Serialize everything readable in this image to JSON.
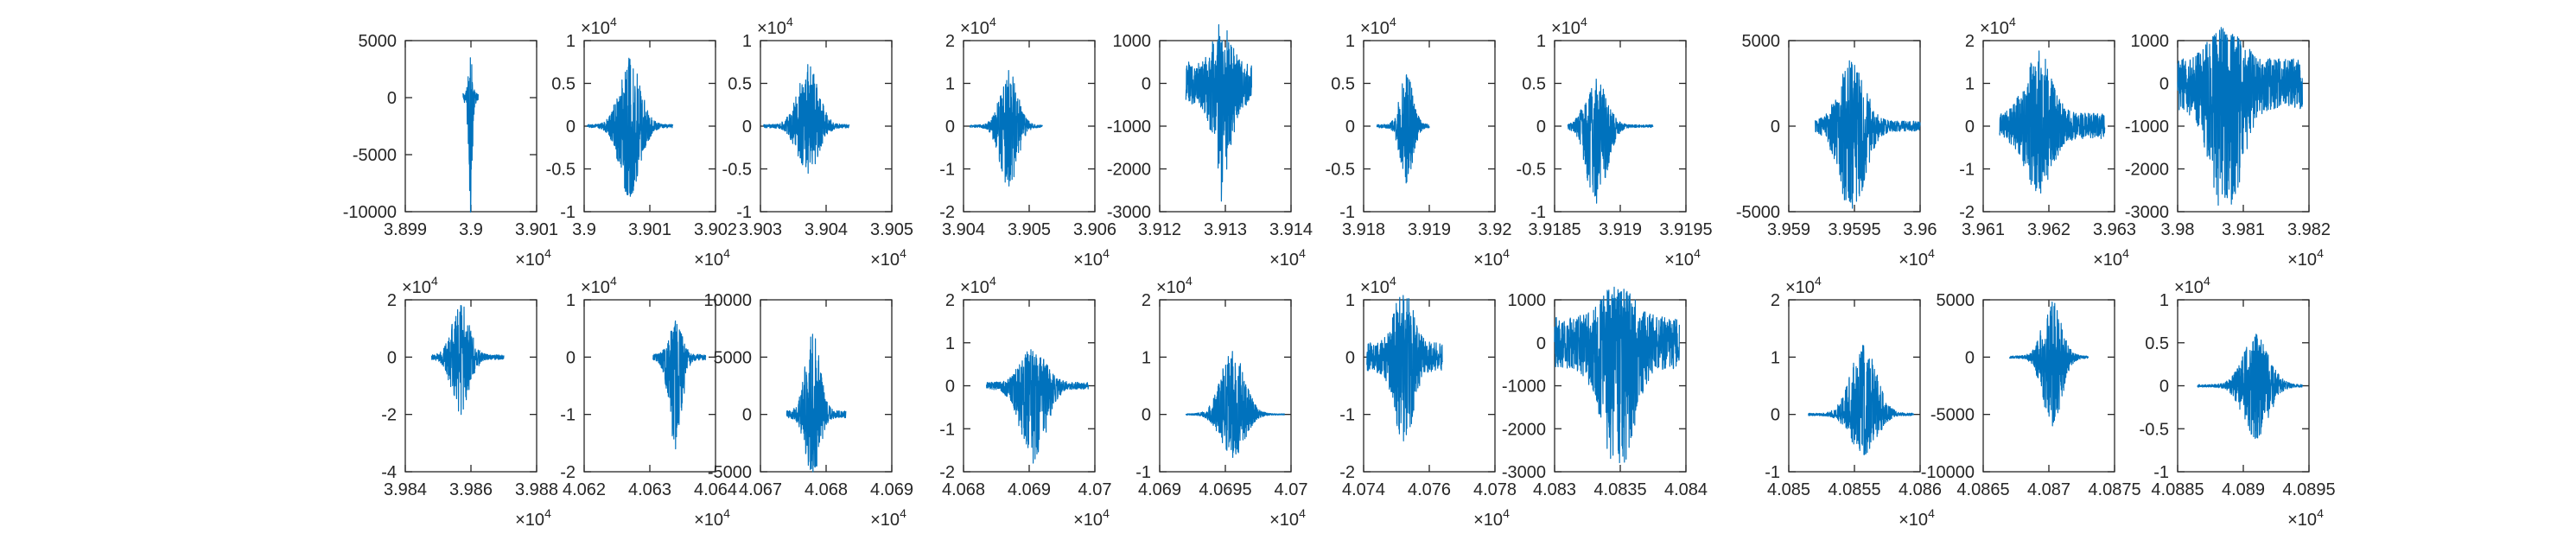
{
  "chart_data": [
    {
      "type": "line",
      "panel": "r1c1",
      "xlim": [
        38990,
        39010
      ],
      "ylim": [
        -10000,
        5000
      ],
      "x_tick_labels": [
        "3.899",
        "3.9",
        "3.901"
      ],
      "x_tick_values": [
        38990,
        39000,
        39010
      ],
      "x_multiplier": "×10^4",
      "y_tick_labels": [
        "5000",
        "0",
        "-5000",
        "-10000"
      ],
      "y_tick_values": [
        5000,
        0,
        -5000,
        -10000
      ],
      "y_multiplier": "",
      "series": [
        {
          "x_start": 38998.8,
          "x_end": 39001.1,
          "y_peak_pos": 3500,
          "y_peak_neg": -10000,
          "y_base": 400
        }
      ]
    },
    {
      "type": "line",
      "panel": "r1c2",
      "xlim": [
        39000,
        39020
      ],
      "ylim": [
        -10000,
        10000
      ],
      "x_tick_labels": [
        "3.9",
        "3.901",
        "3.902"
      ],
      "x_tick_values": [
        39000,
        39010,
        39020
      ],
      "x_multiplier": "×10^4",
      "y_tick_labels": [
        "1",
        "0.5",
        "0",
        "-0.5",
        "-1"
      ],
      "y_tick_values": [
        10000,
        5000,
        0,
        -5000,
        -10000
      ],
      "y_multiplier": "×10^4",
      "series": [
        {
          "x_start": 39000.5,
          "x_end": 39013.5,
          "y_peak_pos": 7800,
          "y_peak_neg": -8200,
          "y_base": 200
        }
      ]
    },
    {
      "type": "line",
      "panel": "r1c3",
      "xlim": [
        39030,
        39050
      ],
      "ylim": [
        -10000,
        10000
      ],
      "x_tick_labels": [
        "3.903",
        "3.904",
        "3.905"
      ],
      "x_tick_values": [
        39030,
        39040,
        39050
      ],
      "x_multiplier": "×10^4",
      "y_tick_labels": [
        "1",
        "0.5",
        "0",
        "-0.5",
        "-1"
      ],
      "y_tick_values": [
        10000,
        5000,
        0,
        -5000,
        -10000
      ],
      "y_multiplier": "×10^4",
      "series": [
        {
          "x_start": 39030.5,
          "x_end": 39043.5,
          "y_peak_pos": 7200,
          "y_peak_neg": -5500,
          "y_base": 200
        }
      ]
    },
    {
      "type": "line",
      "panel": "r1c4",
      "xlim": [
        39040,
        39060
      ],
      "ylim": [
        -20000,
        20000
      ],
      "x_tick_labels": [
        "3.904",
        "3.905",
        "3.906"
      ],
      "x_tick_values": [
        39040,
        39050,
        39060
      ],
      "x_multiplier": "×10^4",
      "y_tick_labels": [
        "2",
        "1",
        "0",
        "-1",
        "-2"
      ],
      "y_tick_values": [
        20000,
        10000,
        0,
        -10000,
        -20000
      ],
      "y_multiplier": "×10^4",
      "series": [
        {
          "x_start": 39041.0,
          "x_end": 39052.0,
          "y_peak_pos": 13000,
          "y_peak_neg": -14000,
          "y_base": 300
        }
      ]
    },
    {
      "type": "line",
      "panel": "r1c5",
      "xlim": [
        39120,
        39140
      ],
      "ylim": [
        -3000,
        1000
      ],
      "x_tick_labels": [
        "3.912",
        "3.913",
        "3.914"
      ],
      "x_tick_values": [
        39120,
        39130,
        39140
      ],
      "x_multiplier": "×10^4",
      "y_tick_labels": [
        "1000",
        "0",
        "-1000",
        "-2000",
        "-3000"
      ],
      "y_tick_values": [
        1000,
        0,
        -1000,
        -2000,
        -3000
      ],
      "y_multiplier": "",
      "series": [
        {
          "x_start": 39124.0,
          "x_end": 39134.0,
          "y_peak_pos": 1000,
          "y_peak_neg": -2300,
          "y_base": 500
        }
      ]
    },
    {
      "type": "line",
      "panel": "r1c6",
      "xlim": [
        39180,
        39200
      ],
      "ylim": [
        -10000,
        10000
      ],
      "x_tick_labels": [
        "3.918",
        "3.919",
        "3.92"
      ],
      "x_tick_values": [
        39180,
        39190,
        39200
      ],
      "x_multiplier": "×10^4",
      "y_tick_labels": [
        "1",
        "0.5",
        "0",
        "-0.5",
        "-1"
      ],
      "y_tick_values": [
        10000,
        5000,
        0,
        -5000,
        -10000
      ],
      "y_multiplier": "×10^4",
      "series": [
        {
          "x_start": 39182.0,
          "x_end": 39190.0,
          "y_peak_pos": 6000,
          "y_peak_neg": -6500,
          "y_base": 200
        }
      ]
    },
    {
      "type": "line",
      "panel": "r1c7",
      "xlim": [
        39185,
        39195
      ],
      "ylim": [
        -10000,
        10000
      ],
      "x_tick_labels": [
        "3.9185",
        "3.919",
        "3.9195"
      ],
      "x_tick_values": [
        39185,
        39190,
        39195
      ],
      "x_multiplier": "×10^4",
      "y_tick_labels": [
        "1",
        "0.5",
        "0",
        "-0.5",
        "-1"
      ],
      "y_tick_values": [
        10000,
        5000,
        0,
        -5000,
        -10000
      ],
      "y_multiplier": "×10^4",
      "series": [
        {
          "x_start": 39186.0,
          "x_end": 39192.5,
          "y_peak_pos": 5500,
          "y_peak_neg": -9000,
          "y_base": 150
        }
      ]
    },
    {
      "type": "line",
      "panel": "r1c8",
      "xlim": [
        39590,
        39600
      ],
      "ylim": [
        -5000,
        5000
      ],
      "x_tick_labels": [
        "3.959",
        "3.9595",
        "3.96"
      ],
      "x_tick_values": [
        39590,
        39595,
        39600
      ],
      "x_multiplier": "×10^4",
      "y_tick_labels": [
        "5000",
        "0",
        "-5000"
      ],
      "y_tick_values": [
        5000,
        0,
        -5000
      ],
      "y_multiplier": "",
      "series": [
        {
          "x_start": 39592.0,
          "x_end": 39600.0,
          "y_peak_pos": 3600,
          "y_peak_neg": -4800,
          "y_base": 300
        }
      ]
    },
    {
      "type": "line",
      "panel": "r1c9",
      "xlim": [
        39610,
        39630
      ],
      "ylim": [
        -20000,
        20000
      ],
      "x_tick_labels": [
        "3.961",
        "3.962",
        "3.963"
      ],
      "x_tick_values": [
        39610,
        39620,
        39630
      ],
      "x_multiplier": "×10^4",
      "y_tick_labels": [
        "2",
        "1",
        "0",
        "-1",
        "-2"
      ],
      "y_tick_values": [
        20000,
        10000,
        0,
        -10000,
        -20000
      ],
      "y_multiplier": "×10^4",
      "series": [
        {
          "x_start": 39612.5,
          "x_end": 39628.5,
          "y_peak_pos": 15000,
          "y_peak_neg": -13000,
          "y_base": 3000
        }
      ]
    },
    {
      "type": "line",
      "panel": "r1c10",
      "xlim": [
        39800,
        39820
      ],
      "ylim": [
        -3000,
        1000
      ],
      "x_tick_labels": [
        "3.98",
        "3.981",
        "3.982"
      ],
      "x_tick_values": [
        39800,
        39810,
        39820
      ],
      "x_multiplier": "×10^4",
      "y_tick_labels": [
        "1000",
        "0",
        "-1000",
        "-2000",
        "-3000"
      ],
      "y_tick_values": [
        1000,
        0,
        -1000,
        -2000,
        -3000
      ],
      "y_multiplier": "",
      "series": [
        {
          "x_start": 39800.0,
          "x_end": 39819.0,
          "y_peak_pos": 800,
          "y_peak_neg": -2600,
          "y_base": 600
        }
      ]
    },
    {
      "type": "line",
      "panel": "r2c1",
      "xlim": [
        39840,
        39880
      ],
      "ylim": [
        -40000,
        20000
      ],
      "x_tick_labels": [
        "3.984",
        "3.986",
        "3.988"
      ],
      "x_tick_values": [
        39840,
        39860,
        39880
      ],
      "x_multiplier": "×10^4",
      "y_tick_labels": [
        "2",
        "0",
        "-2",
        "-4"
      ],
      "y_tick_values": [
        20000,
        0,
        -20000,
        -40000
      ],
      "y_multiplier": "×10^4",
      "series": [
        {
          "x_start": 39848.0,
          "x_end": 39870.0,
          "y_peak_pos": 18000,
          "y_peak_neg": -20000,
          "y_base": 800
        }
      ]
    },
    {
      "type": "line",
      "panel": "r2c2",
      "xlim": [
        40620,
        40640
      ],
      "ylim": [
        -20000,
        10000
      ],
      "x_tick_labels": [
        "4.062",
        "4.063",
        "4.064"
      ],
      "x_tick_values": [
        40620,
        40630,
        40640
      ],
      "x_multiplier": "×10^4",
      "y_tick_labels": [
        "1",
        "0",
        "-1",
        "-2"
      ],
      "y_tick_values": [
        10000,
        0,
        -10000,
        -20000
      ],
      "y_multiplier": "×10^4",
      "series": [
        {
          "x_start": 40630.5,
          "x_end": 40638.5,
          "y_peak_pos": 6000,
          "y_peak_neg": -16000,
          "y_base": 500
        }
      ]
    },
    {
      "type": "line",
      "panel": "r2c3",
      "xlim": [
        40670,
        40690
      ],
      "ylim": [
        -5000,
        10000
      ],
      "x_tick_labels": [
        "4.067",
        "4.068",
        "4.069"
      ],
      "x_tick_values": [
        40670,
        40680,
        40690
      ],
      "x_multiplier": "×10^4",
      "y_tick_labels": [
        "10000",
        "5000",
        "0",
        "-5000"
      ],
      "y_tick_values": [
        10000,
        5000,
        0,
        -5000
      ],
      "y_multiplier": "",
      "series": [
        {
          "x_start": 40674.0,
          "x_end": 40683.0,
          "y_peak_pos": 7000,
          "y_peak_neg": -5000,
          "y_base": 300
        }
      ]
    },
    {
      "type": "line",
      "panel": "r2c4",
      "xlim": [
        40680,
        40700
      ],
      "ylim": [
        -20000,
        20000
      ],
      "x_tick_labels": [
        "4.068",
        "4.069",
        "4.07"
      ],
      "x_tick_values": [
        40680,
        40690,
        40700
      ],
      "x_multiplier": "×10^4",
      "y_tick_labels": [
        "2",
        "1",
        "0",
        "-1",
        "-2"
      ],
      "y_tick_values": [
        20000,
        10000,
        0,
        -10000,
        -20000
      ],
      "y_multiplier": "×10^4",
      "series": [
        {
          "x_start": 40683.5,
          "x_end": 40699.0,
          "y_peak_pos": 8000,
          "y_peak_neg": -18000,
          "y_base": 800
        }
      ]
    },
    {
      "type": "line",
      "panel": "r2c5",
      "xlim": [
        40690,
        40700
      ],
      "ylim": [
        -10000,
        20000
      ],
      "x_tick_labels": [
        "4.069",
        "4.0695",
        "4.07"
      ],
      "x_tick_values": [
        40690,
        40695,
        40700
      ],
      "x_multiplier": "×10^4",
      "y_tick_labels": [
        "2",
        "1",
        "0",
        "-1"
      ],
      "y_tick_values": [
        20000,
        10000,
        0,
        -10000
      ],
      "y_multiplier": "×10^4",
      "series": [
        {
          "x_start": 40692.0,
          "x_end": 40699.5,
          "y_peak_pos": 11000,
          "y_peak_neg": -7500,
          "y_base": 100
        }
      ]
    },
    {
      "type": "line",
      "panel": "r2c6",
      "xlim": [
        40740,
        40780
      ],
      "ylim": [
        -20000,
        10000
      ],
      "x_tick_labels": [
        "4.074",
        "4.076",
        "4.078"
      ],
      "x_tick_values": [
        40740,
        40760,
        40780
      ],
      "x_multiplier": "×10^4",
      "y_tick_labels": [
        "1",
        "0",
        "-1",
        "-2"
      ],
      "y_tick_values": [
        10000,
        0,
        -10000,
        -20000
      ],
      "y_multiplier": "×10^4",
      "series": [
        {
          "x_start": 40741.0,
          "x_end": 40764.0,
          "y_peak_pos": 10000,
          "y_peak_neg": -13000,
          "y_base": 2500
        }
      ]
    },
    {
      "type": "line",
      "panel": "r2c7",
      "xlim": [
        40830,
        40840
      ],
      "ylim": [
        -3000,
        1000
      ],
      "x_tick_labels": [
        "4.083",
        "4.0835",
        "4.084"
      ],
      "x_tick_values": [
        40830,
        40835,
        40840
      ],
      "x_multiplier": "",
      "y_tick_labels": [
        "1000",
        "0",
        "-1000",
        "-2000",
        "-3000"
      ],
      "y_tick_values": [
        1000,
        0,
        -1000,
        -2000,
        -3000
      ],
      "y_multiplier": "",
      "series": [
        {
          "x_start": 40830.0,
          "x_end": 40839.5,
          "y_peak_pos": 800,
          "y_peak_neg": -2500,
          "y_base": 600
        }
      ]
    },
    {
      "type": "line",
      "panel": "r2c8",
      "xlim": [
        40850,
        40860
      ],
      "ylim": [
        -10000,
        20000
      ],
      "x_tick_labels": [
        "4.085",
        "4.0855",
        "4.086"
      ],
      "x_tick_values": [
        40850,
        40855,
        40860
      ],
      "x_multiplier": "×10^4",
      "y_tick_labels": [
        "2",
        "1",
        "0",
        "-1"
      ],
      "y_tick_values": [
        20000,
        10000,
        0,
        -10000
      ],
      "y_multiplier": "×10^4",
      "series": [
        {
          "x_start": 40851.5,
          "x_end": 40859.5,
          "y_peak_pos": 12000,
          "y_peak_neg": -7000,
          "y_base": 200
        }
      ]
    },
    {
      "type": "line",
      "panel": "r2c9",
      "xlim": [
        40865,
        40875
      ],
      "ylim": [
        -10000,
        5000
      ],
      "x_tick_labels": [
        "4.0865",
        "4.087",
        "4.0875"
      ],
      "x_tick_values": [
        40865,
        40870,
        40875
      ],
      "x_multiplier": "",
      "y_tick_labels": [
        "5000",
        "0",
        "-5000",
        "-10000"
      ],
      "y_tick_values": [
        5000,
        0,
        -5000,
        -10000
      ],
      "y_multiplier": "",
      "series": [
        {
          "x_start": 40867.0,
          "x_end": 40873.0,
          "y_peak_pos": 4800,
          "y_peak_neg": -6000,
          "y_base": 100
        }
      ]
    },
    {
      "type": "line",
      "panel": "r2c10",
      "xlim": [
        40885,
        40895
      ],
      "ylim": [
        -10000,
        10000
      ],
      "x_tick_labels": [
        "4.0885",
        "4.089",
        "4.0895"
      ],
      "x_tick_values": [
        40885,
        40890,
        40895
      ],
      "x_multiplier": "×10^4",
      "y_tick_labels": [
        "1",
        "0.5",
        "0",
        "-0.5",
        "-1"
      ],
      "y_tick_values": [
        10000,
        5000,
        0,
        -5000,
        -10000
      ],
      "y_multiplier": "×10^4",
      "series": [
        {
          "x_start": 40886.5,
          "x_end": 40894.5,
          "y_peak_pos": 6000,
          "y_peak_neg": -6000,
          "y_base": 150
        }
      ]
    }
  ],
  "style": {
    "line_color": "#0072BD",
    "axis_color": "#262626",
    "background": "#ffffff"
  }
}
